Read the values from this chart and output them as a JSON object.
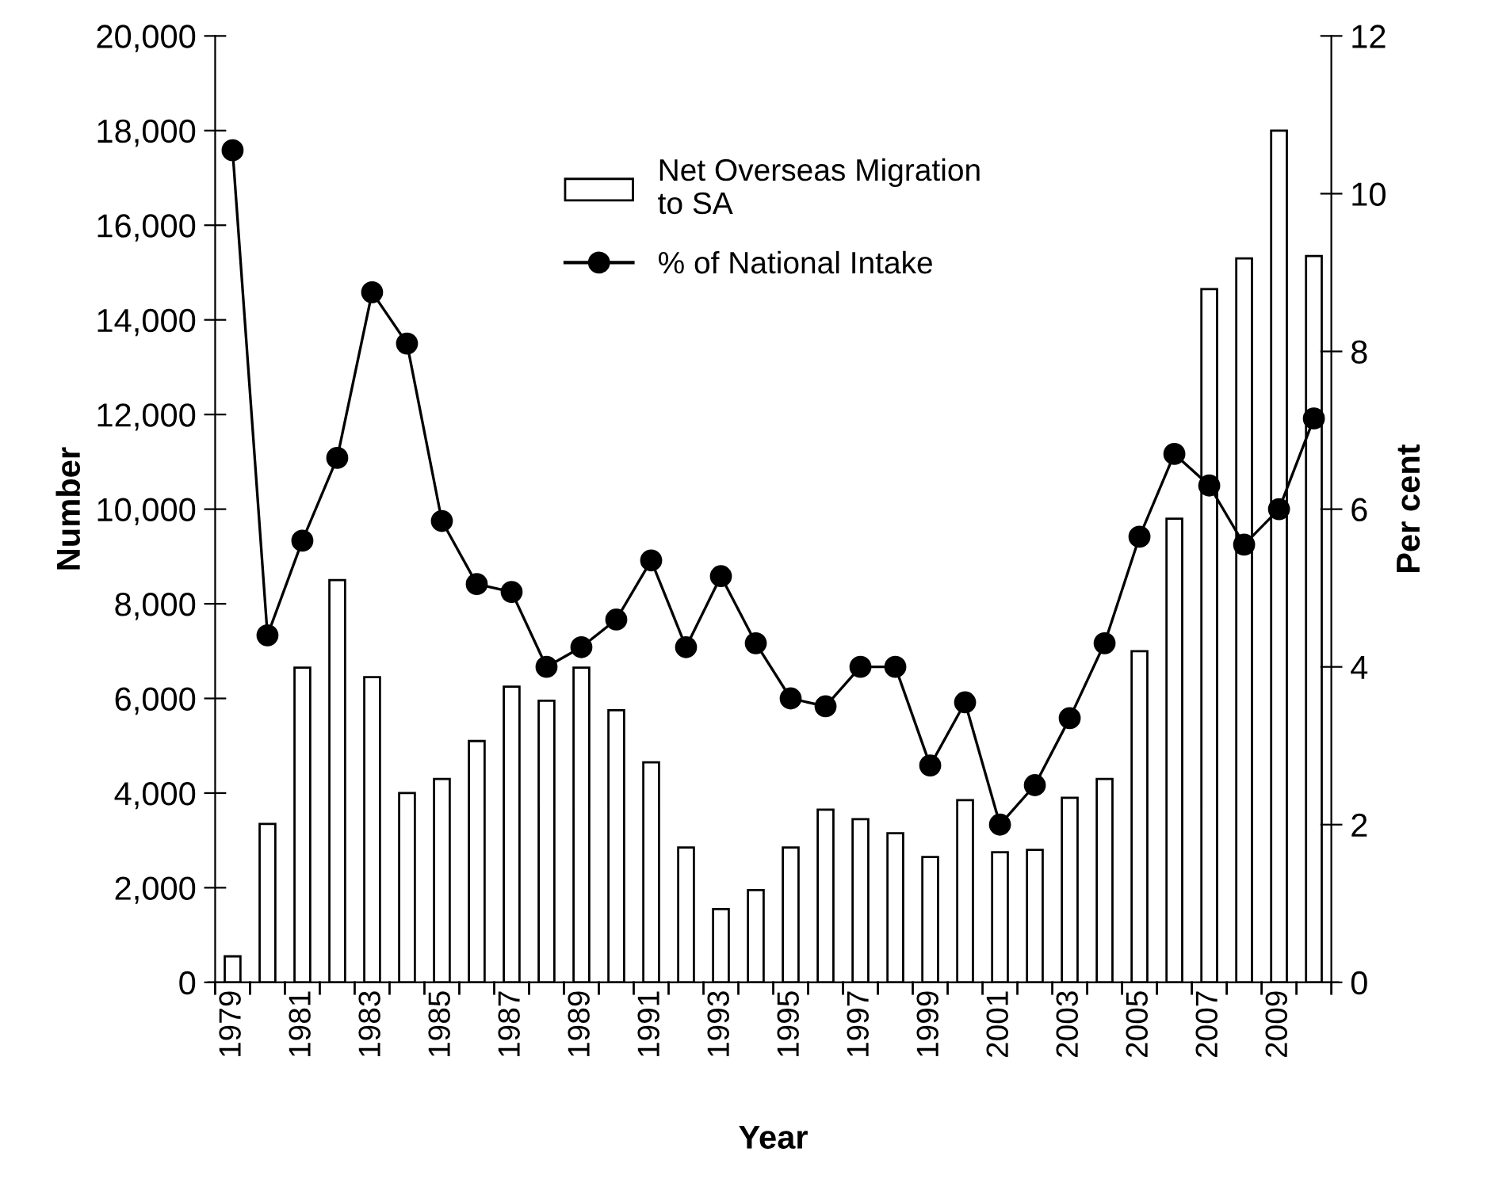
{
  "chart_data": {
    "type": "bar",
    "xlabel": "Year",
    "ylabel": "Number",
    "y2label": "Per cent",
    "categories": [
      "1979",
      null,
      "1981",
      null,
      "1983",
      null,
      "1985",
      null,
      "1987",
      null,
      "1989",
      null,
      "1991",
      null,
      "1993",
      null,
      "1995",
      null,
      "1997",
      null,
      "1999",
      null,
      "2001",
      null,
      "2003",
      null,
      "2005",
      null,
      "2007",
      null,
      "2009",
      null
    ],
    "series": [
      {
        "name": "Net Overseas Migration\nto SA",
        "color": "#ffffff",
        "values": [
          550,
          3350,
          6650,
          8500,
          6450,
          4000,
          4300,
          5100,
          6250,
          5950,
          6650,
          5750,
          4650,
          2850,
          1550,
          1950,
          2850,
          3650,
          3450,
          3150,
          2650,
          3850,
          2750,
          2800,
          3900,
          4300,
          7000,
          9800,
          14650,
          15300,
          18000,
          15350
        ]
      },
      {
        "name": "% of National Intake",
        "type": "line",
        "axis": "y2",
        "color": "#000000",
        "marker": "circle",
        "values": [
          10.55,
          4.4,
          5.6,
          6.65,
          8.75,
          8.1,
          5.85,
          5.05,
          4.95,
          4.0,
          4.25,
          4.6,
          5.35,
          4.25,
          5.15,
          4.3,
          3.6,
          3.5,
          4.0,
          4.0,
          2.75,
          3.55,
          2.0,
          2.5,
          3.35,
          4.3,
          5.65,
          6.7,
          6.3,
          5.55,
          6.0,
          7.15
        ]
      }
    ],
    "ylim": [
      0,
      20000
    ],
    "yticks": [
      {
        "value": 0,
        "label": "0"
      },
      {
        "value": 2000,
        "label": "2,000"
      },
      {
        "value": 4000,
        "label": "4,000"
      },
      {
        "value": 6000,
        "label": "6,000"
      },
      {
        "value": 8000,
        "label": "8,000"
      },
      {
        "value": 10000,
        "label": "10,000"
      },
      {
        "value": 12000,
        "label": "12,000"
      },
      {
        "value": 14000,
        "label": "14,000"
      },
      {
        "value": 16000,
        "label": "16,000"
      },
      {
        "value": 18000,
        "label": "18,000"
      },
      {
        "value": 20000,
        "label": "20,000"
      }
    ],
    "y2lim": [
      0,
      12
    ],
    "y2ticks": [
      0,
      2,
      4,
      6,
      8,
      10,
      12
    ],
    "legend": "top",
    "grid": false
  }
}
